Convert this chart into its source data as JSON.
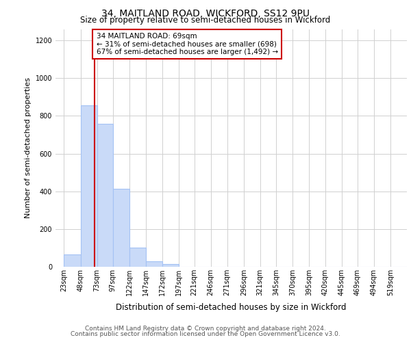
{
  "title1": "34, MAITLAND ROAD, WICKFORD, SS12 9PU",
  "title2": "Size of property relative to semi-detached houses in Wickford",
  "xlabel": "Distribution of semi-detached houses by size in Wickford",
  "ylabel": "Number of semi-detached properties",
  "footer1": "Contains HM Land Registry data © Crown copyright and database right 2024.",
  "footer2": "Contains public sector information licensed under the Open Government Licence v3.0.",
  "annotation_line1": "34 MAITLAND ROAD: 69sqm",
  "annotation_line2": "← 31% of semi-detached houses are smaller (698)",
  "annotation_line3": "67% of semi-detached houses are larger (1,492) →",
  "property_size": 69,
  "bar_left_edges": [
    23,
    48,
    73,
    97,
    122,
    147,
    172,
    197,
    221,
    246,
    271,
    296,
    321,
    345,
    370,
    395,
    420,
    445,
    469,
    494,
    519
  ],
  "bar_heights": [
    65,
    855,
    757,
    415,
    100,
    30,
    13,
    0,
    0,
    0,
    0,
    0,
    0,
    0,
    0,
    0,
    0,
    0,
    0,
    0,
    0
  ],
  "bar_widths": [
    25,
    25,
    24,
    25,
    25,
    25,
    25,
    24,
    25,
    25,
    25,
    25,
    24,
    25,
    25,
    25,
    25,
    24,
    25,
    25,
    25
  ],
  "bar_color": "#c9daf8",
  "bar_edge_color": "#a4c2f4",
  "vline_color": "#cc0000",
  "vline_x": 69,
  "annotation_box_color": "#cc0000",
  "ylim": [
    0,
    1260
  ],
  "yticks": [
    0,
    200,
    400,
    600,
    800,
    1000,
    1200
  ],
  "xtick_labels": [
    "23sqm",
    "48sqm",
    "73sqm",
    "97sqm",
    "122sqm",
    "147sqm",
    "172sqm",
    "197sqm",
    "221sqm",
    "246sqm",
    "271sqm",
    "296sqm",
    "321sqm",
    "345sqm",
    "370sqm",
    "395sqm",
    "420sqm",
    "445sqm",
    "469sqm",
    "494sqm",
    "519sqm"
  ],
  "xtick_positions": [
    23,
    48,
    73,
    97,
    122,
    147,
    172,
    197,
    221,
    246,
    271,
    296,
    321,
    345,
    370,
    395,
    420,
    445,
    469,
    494,
    519
  ],
  "xlim": [
    10,
    544
  ],
  "title1_fontsize": 10,
  "title2_fontsize": 8.5,
  "ylabel_fontsize": 8,
  "xlabel_fontsize": 8.5,
  "footer_fontsize": 6.5,
  "tick_fontsize": 7,
  "annot_fontsize": 7.5
}
